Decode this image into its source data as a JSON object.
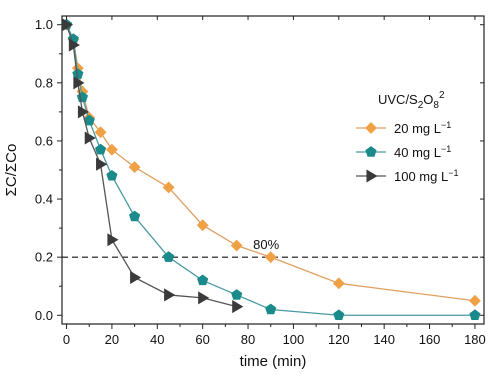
{
  "chart_data": {
    "type": "line",
    "title": "",
    "xlabel": "time (min)",
    "ylabel": "ΣC/ΣCo",
    "xlim": [
      -2,
      184
    ],
    "ylim": [
      -0.03,
      1.03
    ],
    "xticks": [
      0,
      20,
      40,
      60,
      80,
      100,
      120,
      140,
      160,
      180
    ],
    "yticks": [
      0.0,
      0.2,
      0.4,
      0.6,
      0.8,
      1.0
    ],
    "ytick_labels": [
      "0.0",
      "0.2",
      "0.4",
      "0.6",
      "0.8",
      "1.0"
    ],
    "grid": false,
    "legend_title": "UVC/S2O82",
    "legend_position": "center-right",
    "reference_line": {
      "y": 0.2,
      "label": "80%",
      "style": "dashed"
    },
    "series": [
      {
        "name": "20 mg L-1",
        "color": "#f0a045",
        "line_color": "#e0a060",
        "marker": "diamond",
        "x": [
          0,
          3,
          5,
          7,
          10,
          15,
          20,
          30,
          45,
          60,
          75,
          90,
          120,
          180
        ],
        "y": [
          1.0,
          0.95,
          0.85,
          0.77,
          0.68,
          0.63,
          0.57,
          0.51,
          0.44,
          0.31,
          0.24,
          0.2,
          0.11,
          0.05
        ]
      },
      {
        "name": "40 mg L-1",
        "color": "#1a8a8a",
        "line_color": "#4a9aa0",
        "marker": "pentagon",
        "x": [
          0,
          3,
          5,
          7,
          10,
          15,
          20,
          30,
          45,
          60,
          75,
          90,
          120,
          180
        ],
        "y": [
          1.0,
          0.95,
          0.83,
          0.75,
          0.67,
          0.57,
          0.48,
          0.34,
          0.2,
          0.12,
          0.07,
          0.02,
          0.0,
          0.0
        ]
      },
      {
        "name": "100 mg L-1",
        "color": "#3a3a3a",
        "line_color": "#555555",
        "marker": "triangle-right",
        "x": [
          0,
          3,
          5,
          7,
          10,
          15,
          20,
          30,
          45,
          60,
          75
        ],
        "y": [
          1.0,
          0.93,
          0.8,
          0.7,
          0.61,
          0.52,
          0.26,
          0.13,
          0.07,
          0.06,
          0.03
        ]
      }
    ]
  }
}
